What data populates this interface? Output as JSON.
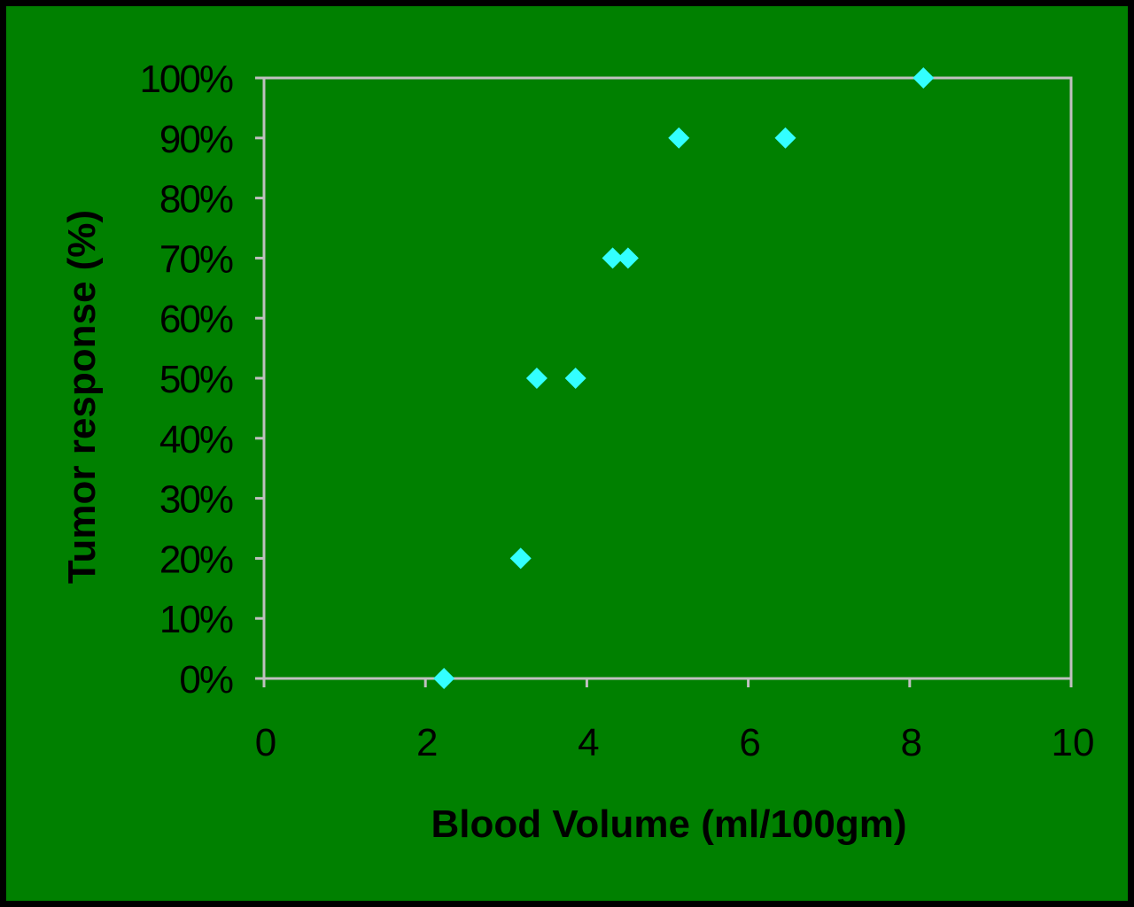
{
  "chart_data": {
    "type": "scatter",
    "title": "",
    "xlabel": "Blood Volume (ml/100gm)",
    "ylabel": "Tumor response (%)",
    "xlim": [
      0,
      10
    ],
    "ylim": [
      0,
      100
    ],
    "x_ticks": [
      "0",
      "2",
      "4",
      "6",
      "8",
      "10"
    ],
    "y_ticks": [
      "0%",
      "10%",
      "20%",
      "30%",
      "40%",
      "50%",
      "60%",
      "70%",
      "80%",
      "90%",
      "100%"
    ],
    "grid": false,
    "legend": "none",
    "marker": "diamond",
    "series": [
      {
        "x": [
          2.23,
          3.18,
          3.38,
          3.86,
          4.32,
          4.51,
          5.14,
          6.46,
          8.17
        ],
        "y": [
          0,
          20,
          50,
          50,
          70,
          70,
          90,
          90,
          100
        ]
      }
    ],
    "colors": {
      "background": "#008000",
      "plot_area": "#008000",
      "plot_border": "#c0c0c0",
      "marker": "#33ffff",
      "text": "#000000"
    }
  }
}
